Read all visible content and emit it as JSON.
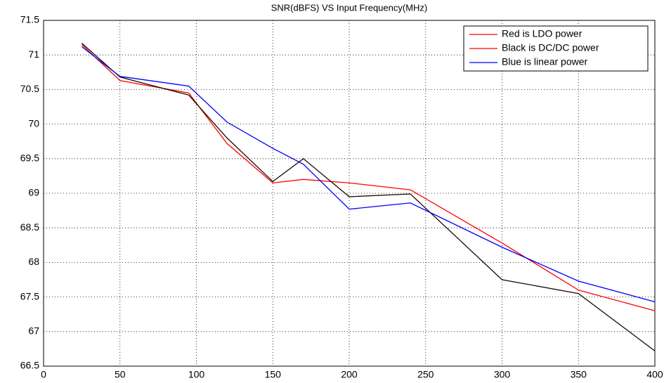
{
  "chart_data": {
    "type": "line",
    "title": "SNR(dBFS) VS Input Frequency(MHz)",
    "x": [
      25,
      50,
      95,
      120,
      150,
      170,
      200,
      240,
      300,
      350,
      400
    ],
    "series": [
      {
        "name": "Red is LDO power",
        "color": "#ff0000",
        "legend_color": "#ff0000",
        "values": [
          71.15,
          70.63,
          70.45,
          69.72,
          69.15,
          69.2,
          69.15,
          69.05,
          68.28,
          67.6,
          67.3
        ]
      },
      {
        "name": "Black is DC/DC power",
        "color": "#1a0a00",
        "legend_color": "#ff0000",
        "values": [
          71.17,
          70.68,
          70.42,
          69.8,
          69.17,
          69.5,
          68.95,
          68.99,
          67.75,
          67.55,
          66.72
        ]
      },
      {
        "name": "Blue is linear power",
        "color": "#0000ff",
        "legend_color": "#0000ff",
        "values": [
          71.12,
          70.69,
          70.55,
          70.03,
          69.65,
          69.42,
          68.77,
          68.86,
          68.22,
          67.73,
          67.43
        ]
      }
    ],
    "xlim": [
      0,
      400
    ],
    "xticks": [
      0,
      50,
      100,
      150,
      200,
      250,
      300,
      350,
      400
    ],
    "ylim": [
      66.5,
      71.5
    ],
    "yticks": [
      66.5,
      67,
      67.5,
      68,
      68.5,
      69,
      69.5,
      70,
      70.5,
      71,
      71.5
    ],
    "grid": true,
    "legend": "upper right"
  }
}
